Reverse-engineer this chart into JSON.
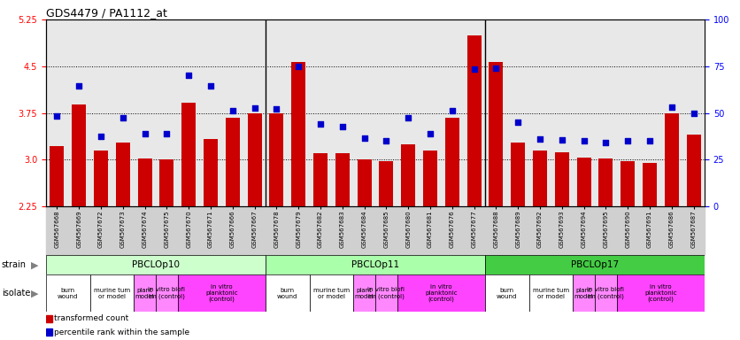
{
  "title": "GDS4479 / PA1112_at",
  "gsm_labels": [
    "GSM567668",
    "GSM567669",
    "GSM567672",
    "GSM567673",
    "GSM567674",
    "GSM567675",
    "GSM567670",
    "GSM567671",
    "GSM567666",
    "GSM567667",
    "GSM567678",
    "GSM567679",
    "GSM567682",
    "GSM567683",
    "GSM567684",
    "GSM567685",
    "GSM567680",
    "GSM567681",
    "GSM567676",
    "GSM567677",
    "GSM567688",
    "GSM567689",
    "GSM567692",
    "GSM567693",
    "GSM567694",
    "GSM567695",
    "GSM567690",
    "GSM567691",
    "GSM567686",
    "GSM567687"
  ],
  "bar_values": [
    3.22,
    3.88,
    3.15,
    3.27,
    3.02,
    3.01,
    3.92,
    3.33,
    3.68,
    3.75,
    3.75,
    4.57,
    3.11,
    3.1,
    3.0,
    2.98,
    3.25,
    3.15,
    3.68,
    5.0,
    4.57,
    3.27,
    3.15,
    3.12,
    3.03,
    3.02,
    2.97,
    2.95,
    3.75,
    3.4
  ],
  "dot_values": [
    3.7,
    4.18,
    3.38,
    3.68,
    3.42,
    3.42,
    4.35,
    4.18,
    3.78,
    3.83,
    3.82,
    4.5,
    3.58,
    3.53,
    3.35,
    3.3,
    3.68,
    3.42,
    3.78,
    4.45,
    4.47,
    3.6,
    3.33,
    3.32,
    3.3,
    3.27,
    3.3,
    3.3,
    3.85,
    3.75
  ],
  "ylim": [
    2.25,
    5.25
  ],
  "yticks_left": [
    2.25,
    3.0,
    3.75,
    4.5,
    5.25
  ],
  "yticks_right": [
    0,
    25,
    50,
    75,
    100
  ],
  "bar_color": "#cc0000",
  "dot_color": "#0000cc",
  "strain_groups": [
    {
      "label": "PBCLOp10",
      "start": 0,
      "end": 10,
      "color": "#ccffcc"
    },
    {
      "label": "PBCLOp11",
      "start": 10,
      "end": 20,
      "color": "#aaffaa"
    },
    {
      "label": "PBCLOp17",
      "start": 20,
      "end": 30,
      "color": "#44cc44"
    }
  ],
  "isolate_groups": [
    {
      "label": "burn\nwound",
      "start": 0,
      "end": 2,
      "color": "#ffffff"
    },
    {
      "label": "murine tum\nor model",
      "start": 2,
      "end": 4,
      "color": "#ffffff"
    },
    {
      "label": "plant\nmodel",
      "start": 4,
      "end": 5,
      "color": "#ff88ff"
    },
    {
      "label": "in vitro biofi\nlm (control)",
      "start": 5,
      "end": 6,
      "color": "#ff88ff"
    },
    {
      "label": "in vitro\nplanktonic\n(control)",
      "start": 6,
      "end": 10,
      "color": "#ff44ff"
    },
    {
      "label": "burn\nwound",
      "start": 10,
      "end": 12,
      "color": "#ffffff"
    },
    {
      "label": "murine tum\nor model",
      "start": 12,
      "end": 14,
      "color": "#ffffff"
    },
    {
      "label": "plant\nmodel",
      "start": 14,
      "end": 15,
      "color": "#ff88ff"
    },
    {
      "label": "in vitro biofi\nlm (control)",
      "start": 15,
      "end": 16,
      "color": "#ff88ff"
    },
    {
      "label": "in vitro\nplanktonic\n(control)",
      "start": 16,
      "end": 20,
      "color": "#ff44ff"
    },
    {
      "label": "burn\nwound",
      "start": 20,
      "end": 22,
      "color": "#ffffff"
    },
    {
      "label": "murine tum\nor model",
      "start": 22,
      "end": 24,
      "color": "#ffffff"
    },
    {
      "label": "plant\nmodel",
      "start": 24,
      "end": 25,
      "color": "#ff88ff"
    },
    {
      "label": "in vitro biofi\nlm (control)",
      "start": 25,
      "end": 26,
      "color": "#ff88ff"
    },
    {
      "label": "in vitro\nplanktonic\n(control)",
      "start": 26,
      "end": 30,
      "color": "#ff44ff"
    }
  ],
  "plot_bg_color": "#e8e8e8",
  "legend_items": [
    {
      "label": "transformed count",
      "color": "#cc0000"
    },
    {
      "label": "percentile rank within the sample",
      "color": "#0000cc"
    }
  ]
}
